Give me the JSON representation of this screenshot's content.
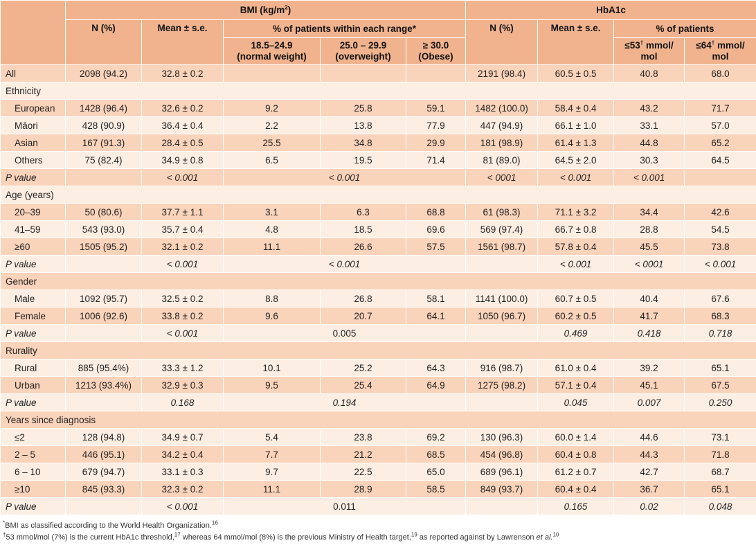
{
  "header": {
    "bmi_group": "BMI (kg/m",
    "bmi_group_sup": "2",
    "bmi_group_end": ")",
    "hba1c_group": "HbA1c",
    "bmi_n": "N (%)",
    "bmi_mean": "Mean ± s.e.",
    "bmi_pct": "% of patients within each range*",
    "hba_n": "N (%)",
    "hba_mean": "Mean ± s.e.",
    "hba_pct": "% of patients",
    "range1_a": "18.5–24.9",
    "range1_b": "(normal weight)",
    "range2_a": "25.0 – 29.9",
    "range2_b": "(overweight)",
    "range3_a": "≥ 30.0",
    "range3_b": "(Obese)",
    "t53_a": "≤53",
    "t53_sup": "†",
    "t53_b": " mmol/",
    "t53_c": "mol",
    "t64_a": "≤64",
    "t64_sup": "†",
    "t64_b": " mmol/",
    "t64_c": "mol"
  },
  "rows": [
    {
      "type": "data",
      "style": "lab",
      "cells": [
        "All",
        "2098 (94.2)",
        "32.8 ± 0.2",
        "",
        "",
        "",
        "2191 (98.4)",
        "60.5 ± 0.5",
        "40.8",
        "68.0"
      ]
    },
    {
      "type": "section",
      "label": "Ethnicity"
    },
    {
      "type": "data",
      "style": "ind",
      "cells": [
        "European",
        "1428 (96.4)",
        "32.6 ± 0.2",
        "9.2",
        "25.8",
        "59.1",
        "1482 (100.0)",
        "58.4 ± 0.4",
        "43.2",
        "71.7"
      ]
    },
    {
      "type": "data",
      "style": "ind",
      "cells": [
        "Māori",
        "428 (90.9)",
        "36.4 ± 0.4",
        "2.2",
        "13.8",
        "77.9",
        "447 (94.9)",
        "66.1 ± 1.0",
        "33.1",
        "57.0"
      ]
    },
    {
      "type": "data",
      "style": "ind",
      "cells": [
        "Asian",
        "167 (91.3)",
        "28.4 ± 0.5",
        "25.5",
        "34.8",
        "29.9",
        "181 (98.9)",
        "61.4 ± 1.3",
        "44.8",
        "65.2"
      ]
    },
    {
      "type": "data",
      "style": "ind",
      "cells": [
        "Others",
        "75 (82.4)",
        "34.9 ± 0.8",
        "6.5",
        "19.5",
        "71.4",
        "81 (89.0)",
        "64.5 ± 2.0",
        "30.3",
        "64.5"
      ]
    },
    {
      "type": "pval",
      "label": "P value",
      "mean": "< 0.001",
      "pct": "< 0.001",
      "pct_italic": true,
      "hba_n": "< 0001",
      "hba_mean": "< 0.001",
      "t53": "< 0.001",
      "t64": null
    },
    {
      "type": "section",
      "label": "Age (years)"
    },
    {
      "type": "data",
      "style": "ind",
      "cells": [
        "20–39",
        "50 (80.6)",
        "37.7 ± 1.1",
        "3.1",
        "6.3",
        "68.8",
        "61 (98.3)",
        "71.1 ± 3.2",
        "34.4",
        "42.6"
      ]
    },
    {
      "type": "data",
      "style": "ind",
      "cells": [
        "41–59",
        "543 (93.0)",
        "35.7 ± 0.4",
        "4.8",
        "18.5",
        "69.6",
        "569 (97.4)",
        "66.7 ± 0.8",
        "28.8",
        "54.5"
      ]
    },
    {
      "type": "data",
      "style": "ind",
      "cells": [
        "≥60",
        "1505 (95.2)",
        "32.1 ± 0.2",
        "11.1",
        "26.6",
        "57.5",
        "1561 (98.7)",
        "57.8 ± 0.4",
        "45.5",
        "73.8"
      ]
    },
    {
      "type": "pval",
      "label": "P value",
      "mean": "< 0.001",
      "pct": "< 0.001",
      "pct_italic": true,
      "hba_n": null,
      "hba_mean": "< 0.001",
      "t53": "< 0001",
      "t64": "< 0.001"
    },
    {
      "type": "section",
      "label": "Gender"
    },
    {
      "type": "data",
      "style": "ind",
      "cells": [
        "Male",
        "1092 (95.7)",
        "32.5 ± 0.2",
        "8.8",
        "26.8",
        "58.1",
        "1141 (100.0)",
        "60.7 ± 0.5",
        "40.4",
        "67.6"
      ]
    },
    {
      "type": "data",
      "style": "ind",
      "cells": [
        "Female",
        "1006 (92.6)",
        "33.8 ± 0.2",
        "9.6",
        "20.7",
        "64.1",
        "1050 (96.7)",
        "60.2 ± 0.5",
        "41.7",
        "68.3"
      ]
    },
    {
      "type": "pval",
      "label": "P value",
      "mean": "< 0.001",
      "pct": "0.005",
      "pct_italic": false,
      "hba_n": null,
      "hba_mean": "0.469",
      "t53": "0.418",
      "t64": "0.718"
    },
    {
      "type": "section",
      "label": "Rurality"
    },
    {
      "type": "data",
      "style": "ind",
      "cells": [
        "Rural",
        "885 (95.4%)",
        "33.3 ± 1.2",
        "10.1",
        "25.2",
        "64.3",
        "916 (98.7)",
        "61.0 ± 0.4",
        "39.2",
        "65.1"
      ]
    },
    {
      "type": "data",
      "style": "ind",
      "cells": [
        "Urban",
        "1213 (93.4%)",
        "32.9 ± 0.3",
        "9.5",
        "25.4",
        "64.9",
        "1275 (98.2)",
        "57.1 ± 0.4",
        "45.1",
        "67.5"
      ]
    },
    {
      "type": "pval",
      "label": "P value",
      "mean": "0.168",
      "pct": "0.194",
      "pct_italic": true,
      "hba_n": null,
      "hba_mean": "0.045",
      "t53": "0.007",
      "t64": "0.250"
    },
    {
      "type": "section",
      "label": "Years since diagnosis"
    },
    {
      "type": "data",
      "style": "ind",
      "cells": [
        "≤2",
        "128 (94.8)",
        "34.9 ± 0.7",
        "5.4",
        "23.8",
        "69.2",
        "130 (96.3)",
        "60.0 ± 1.4",
        "44.6",
        "73.1"
      ]
    },
    {
      "type": "data",
      "style": "ind",
      "cells": [
        "2 – 5",
        "446 (95.1)",
        "34.2 ± 0.4",
        "7.7",
        "21.2",
        "68.5",
        "454 (96.8)",
        "60.4 ± 0.8",
        "44.3",
        "71.8"
      ]
    },
    {
      "type": "data",
      "style": "ind",
      "cells": [
        "6 – 10",
        "679 (94.7)",
        "33.1 ± 0.3",
        "9.7",
        "22.5",
        "65.0",
        "689 (96.1)",
        "61.2 ± 0.7",
        "42.7",
        "68.7"
      ]
    },
    {
      "type": "data",
      "style": "ind",
      "cells": [
        "≥10",
        "845 (93.3)",
        "32.3 ± 0.2",
        "11.1",
        "28.9",
        "58.5",
        "849 (93.7)",
        "60.4 ± 0.4",
        "36.7",
        "65.1"
      ]
    },
    {
      "type": "pval",
      "label": "P value",
      "mean": "< 0.001",
      "pct": "0.011",
      "pct_italic": false,
      "hba_n": null,
      "hba_mean": "0.165",
      "t53": "0.02",
      "t64": "0.048"
    }
  ],
  "footnotes": {
    "fn1_sup": "*",
    "fn1_text": "BMI as classified according to the World Health Organization.",
    "fn1_ref": "16",
    "fn2_sup": "†",
    "fn2_text": "53 mmol/mol (7%) is the current HbA1c threshold,",
    "fn2_ref1": "17",
    "fn2_mid": " whereas 64 mmol/mol (8%) is the previous Ministry of Health target,",
    "fn2_ref2": "19",
    "fn2_mid2": " as reported against by Lawrenson ",
    "fn2_etal": "et al.",
    "fn2_ref3": "10"
  }
}
